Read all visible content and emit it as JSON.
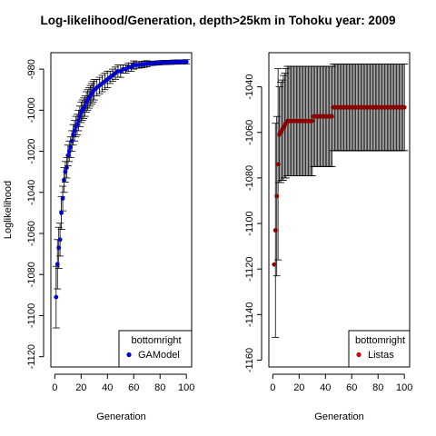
{
  "figure": {
    "title": "Log-likelihood/Generation, depth>25km in Tohoku year: 2009"
  },
  "chart_data": [
    {
      "type": "scatter",
      "xlabel": "Generation",
      "ylabel": "Loglikelihood",
      "xlim": [
        -3,
        104
      ],
      "ylim": [
        -1125,
        -972
      ],
      "xticks": [
        0,
        20,
        40,
        60,
        80,
        100
      ],
      "yticks": [
        -1120,
        -1100,
        -1080,
        -1060,
        -1040,
        -1020,
        -1000,
        -980
      ],
      "legend": {
        "title": "bottomright",
        "position": "bottom-right",
        "entries": [
          {
            "label": "GAModel",
            "color": "#0000cc"
          }
        ]
      },
      "series": [
        {
          "name": "GAModel",
          "color": "#0000cc",
          "errorbar_color": "#000000",
          "x": [
            1,
            2,
            3,
            4,
            5,
            6,
            7,
            8,
            9,
            10,
            11,
            12,
            13,
            14,
            15,
            16,
            17,
            18,
            19,
            20,
            21,
            22,
            23,
            24,
            25,
            26,
            27,
            28,
            29,
            30,
            32,
            34,
            36,
            38,
            40,
            42,
            44,
            46,
            48,
            50,
            52,
            54,
            56,
            58,
            60,
            62,
            64,
            66,
            68,
            70,
            72,
            74,
            76,
            78,
            80,
            82,
            84,
            86,
            88,
            90,
            92,
            94,
            96,
            98,
            100
          ],
          "y": [
            -1091,
            -1075,
            -1067,
            -1063,
            -1050,
            -1043,
            -1034,
            -1030,
            -1028,
            -1022,
            -1020,
            -1018,
            -1015,
            -1012,
            -1010,
            -1008,
            -1007,
            -1005,
            -1003,
            -1001,
            -1000,
            -999,
            -998,
            -996,
            -995,
            -994,
            -993,
            -992,
            -991,
            -990,
            -989,
            -988,
            -987,
            -986,
            -985,
            -984,
            -983,
            -982,
            -981,
            -981,
            -980,
            -980,
            -979,
            -979,
            -978,
            -978,
            -978,
            -977.8,
            -977.6,
            -977.4,
            -977.3,
            -977.2,
            -977.1,
            -977,
            -976.9,
            -976.8,
            -976.8,
            -976.7,
            -976.7,
            -976.6,
            -976.6,
            -976.5,
            -976.5,
            -976.5,
            -976.4
          ],
          "err": [
            15,
            12,
            10,
            8,
            8,
            6,
            6,
            5,
            5,
            5,
            5,
            5,
            5,
            5,
            5,
            5,
            5,
            5,
            5,
            5,
            5,
            5,
            5,
            5,
            5,
            5,
            5,
            5,
            5,
            5,
            4,
            4,
            4,
            4,
            4,
            3,
            3,
            3,
            3,
            3,
            2,
            2,
            2,
            2,
            2,
            1.5,
            1.5,
            1.5,
            1.5,
            1.5,
            1,
            1,
            1,
            1,
            1,
            1,
            1,
            1,
            1,
            1,
            1,
            1,
            1,
            1,
            1
          ]
        }
      ]
    },
    {
      "type": "scatter",
      "xlabel": "Generation",
      "ylabel": "",
      "xlim": [
        -3,
        104
      ],
      "ylim": [
        -1163,
        -1025
      ],
      "xticks": [
        0,
        20,
        40,
        60,
        80,
        100
      ],
      "yticks": [
        -1160,
        -1140,
        -1120,
        -1100,
        -1080,
        -1060,
        -1040
      ],
      "legend": {
        "title": "bottomright",
        "position": "bottom-right",
        "entries": [
          {
            "label": "Listas",
            "color": "#cc0000"
          }
        ]
      },
      "series": [
        {
          "name": "Listas",
          "color": "#8b0000",
          "errorbar_color": "#000000",
          "x": [
            1,
            2,
            3,
            4,
            5,
            6,
            7,
            8,
            9,
            10,
            11,
            12,
            13,
            14,
            15,
            16,
            17,
            18,
            19,
            20,
            21,
            22,
            23,
            24,
            25,
            26,
            27,
            28,
            29,
            30,
            31,
            32,
            33,
            34,
            35,
            36,
            37,
            38,
            39,
            40,
            41,
            42,
            43,
            44,
            45,
            46,
            47,
            48,
            49,
            50,
            51,
            52,
            53,
            54,
            55,
            56,
            57,
            58,
            59,
            60,
            61,
            62,
            63,
            64,
            65,
            66,
            67,
            68,
            69,
            70,
            71,
            72,
            73,
            74,
            75,
            76,
            77,
            78,
            79,
            80,
            81,
            82,
            83,
            84,
            85,
            86,
            87,
            88,
            89,
            90,
            91,
            92,
            93,
            94,
            95,
            96,
            97,
            98,
            99,
            100
          ],
          "y": [
            -1118,
            -1103,
            -1088,
            -1074,
            -1061,
            -1060,
            -1059,
            -1058,
            -1057,
            -1056,
            -1055,
            -1055,
            -1055,
            -1055,
            -1055,
            -1055,
            -1055,
            -1055,
            -1055,
            -1055,
            -1055,
            -1055,
            -1055,
            -1055,
            -1055,
            -1055,
            -1055,
            -1055,
            -1055,
            -1055,
            -1053,
            -1053,
            -1053,
            -1053,
            -1053,
            -1053,
            -1053,
            -1053,
            -1053,
            -1053,
            -1053,
            -1053,
            -1053,
            -1053,
            -1053,
            -1049,
            -1049,
            -1049,
            -1049,
            -1049,
            -1049,
            -1049,
            -1049,
            -1049,
            -1049,
            -1049,
            -1049,
            -1049,
            -1049,
            -1049,
            -1049,
            -1049,
            -1049,
            -1049,
            -1049,
            -1049,
            -1049,
            -1049,
            -1049,
            -1049,
            -1049,
            -1049,
            -1049,
            -1049,
            -1049,
            -1049,
            -1049,
            -1049,
            -1049,
            -1049,
            -1049,
            -1049,
            -1049,
            -1049,
            -1049,
            -1049,
            -1049,
            -1049,
            -1049,
            -1049,
            -1049,
            -1049,
            -1049,
            -1049,
            -1049,
            -1049,
            -1049,
            -1049,
            -1049,
            -1049
          ],
          "err": [
            0,
            47,
            35,
            42,
            21,
            22,
            22,
            23,
            23,
            24,
            24,
            24,
            24,
            24,
            24,
            24,
            24,
            24,
            24,
            24,
            24,
            24,
            24,
            24,
            24,
            24,
            24,
            24,
            24,
            24,
            22,
            22,
            22,
            22,
            22,
            22,
            22,
            22,
            22,
            22,
            22,
            22,
            22,
            22,
            22,
            19,
            19,
            19,
            19,
            19,
            19,
            19,
            19,
            19,
            19,
            19,
            19,
            19,
            19,
            19,
            19,
            19,
            19,
            19,
            19,
            19,
            19,
            19,
            19,
            19,
            19,
            19,
            19,
            19,
            19,
            19,
            19,
            19,
            19,
            19,
            19,
            19,
            19,
            19,
            19,
            19,
            19,
            19,
            19,
            19,
            19,
            19,
            19,
            19,
            19,
            19,
            19,
            19,
            19,
            19
          ]
        }
      ]
    }
  ]
}
